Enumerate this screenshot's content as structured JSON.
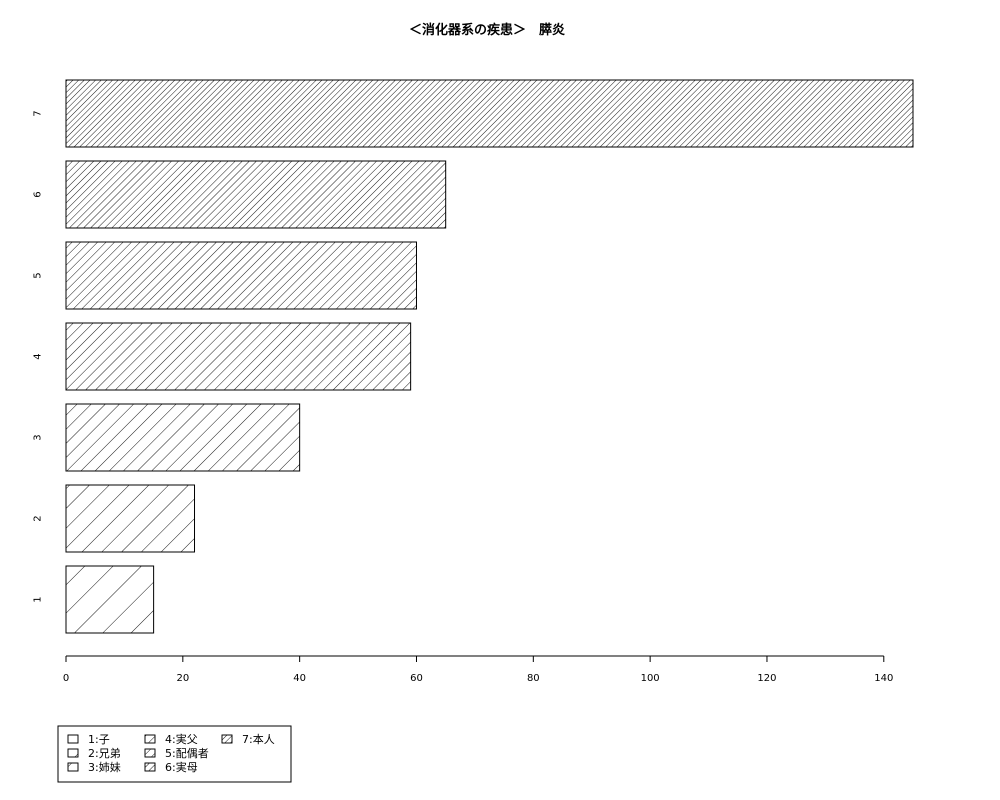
{
  "chart_data": {
    "type": "bar",
    "orientation": "horizontal",
    "title": "＜消化器系の疾患＞　膵炎",
    "categories": [
      "1",
      "2",
      "3",
      "4",
      "5",
      "6",
      "7"
    ],
    "values": [
      15,
      22,
      40,
      59,
      60,
      65,
      145
    ],
    "xlim": [
      0,
      145
    ],
    "xticks": [
      "0",
      "20",
      "40",
      "60",
      "80",
      "100",
      "120",
      "140"
    ],
    "grid": false,
    "legend": {
      "position": "bottom-left",
      "entries": [
        "1:子",
        "2:兄弟",
        "3:姉妹",
        "4:実父",
        "5:配偶者",
        "6:実母",
        "7:本人"
      ]
    },
    "bar_fill": "diagonal-hatch",
    "bar_stroke": "#000000"
  }
}
